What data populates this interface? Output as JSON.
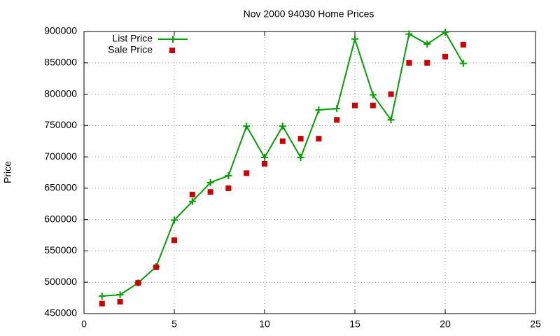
{
  "chart_data": {
    "type": "line",
    "title": "Nov 2000 94030 Home Prices",
    "y_label": "Price",
    "x": [
      1,
      2,
      3,
      4,
      5,
      6,
      7,
      8,
      9,
      10,
      11,
      12,
      13,
      14,
      15,
      16,
      17,
      18,
      19,
      20,
      21
    ],
    "series": [
      {
        "name": "List Price",
        "color": "#00a000",
        "mode": "linespoints",
        "values": [
          478000,
          480000,
          499000,
          525000,
          599000,
          629000,
          659000,
          670000,
          749000,
          699000,
          749000,
          699000,
          775000,
          777000,
          888000,
          799000,
          759000,
          896000,
          880000,
          899000,
          849000
        ]
      },
      {
        "name": "Sale Price",
        "color": "#cc0000",
        "mode": "points",
        "values": [
          466000,
          469000,
          499000,
          524000,
          567000,
          640000,
          644000,
          650000,
          674000,
          689000,
          725000,
          729000,
          729000,
          759000,
          782000,
          782000,
          800000,
          850000,
          850000,
          860000,
          879000
        ]
      }
    ],
    "xlim": [
      0,
      25
    ],
    "xticks": [
      0,
      5,
      10,
      15,
      20,
      25
    ],
    "ylim": [
      450000,
      900000
    ],
    "yticks": [
      450000,
      500000,
      550000,
      600000,
      650000,
      700000,
      750000,
      800000,
      850000,
      900000
    ],
    "grid": true,
    "legend": "top-left"
  }
}
